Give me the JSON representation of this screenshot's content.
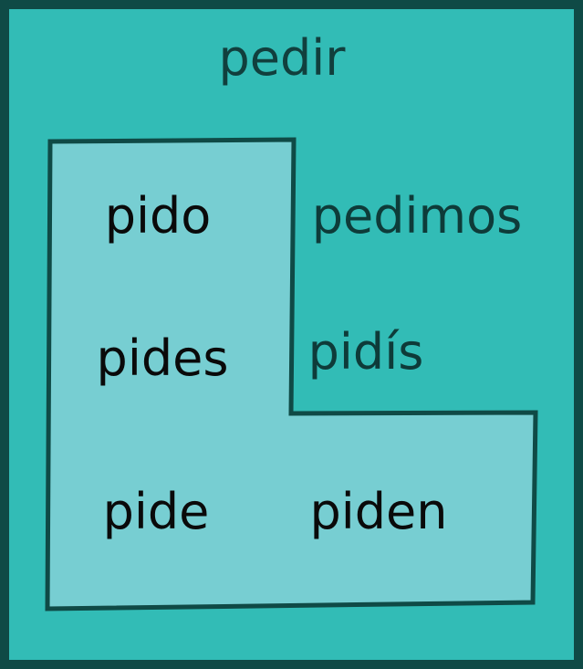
{
  "colors": {
    "outer_border": "#0f4a46",
    "outer_fill": "#32bcb6",
    "boot_fill": "#77ced2",
    "boot_border": "#0f4a46",
    "title_text": "#113f3d",
    "inside_text": "#0a0a0a",
    "outside_text": "#0e3b39"
  },
  "diagram": {
    "title": "pedir",
    "forms": {
      "yo": "pido",
      "nosotros": "pedimos",
      "tu": "pides",
      "vosotros": "pidís",
      "el": "pide",
      "ellos": "piden"
    }
  }
}
